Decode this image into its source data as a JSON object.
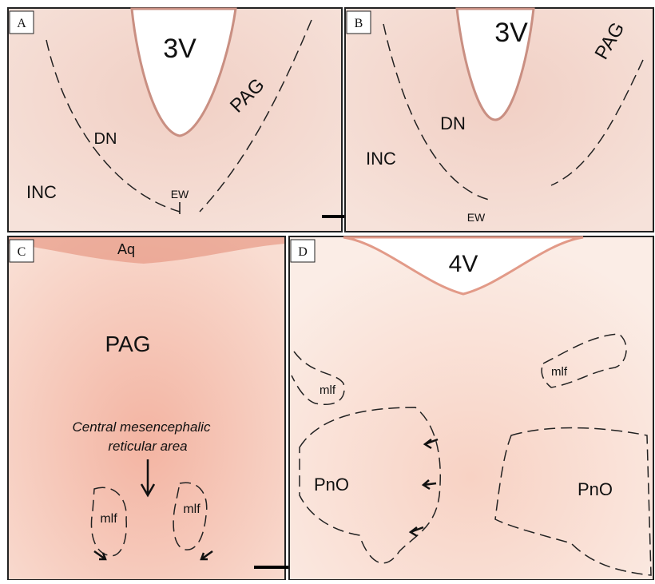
{
  "panels": [
    {
      "label": "A",
      "texts": [
        "3V",
        "PAG",
        "DN",
        "INC",
        "EW"
      ]
    },
    {
      "label": "B",
      "texts": [
        "3V",
        "PAG",
        "DN",
        "INC",
        "EW"
      ]
    },
    {
      "label": "C",
      "texts": [
        "Aq",
        "PAG",
        "Central mesencephalic",
        "reticular area",
        "mlf",
        "mlf"
      ]
    },
    {
      "label": "D",
      "texts": [
        "4V",
        "mlf",
        "mlf",
        "PnO",
        "PnO"
      ]
    }
  ]
}
